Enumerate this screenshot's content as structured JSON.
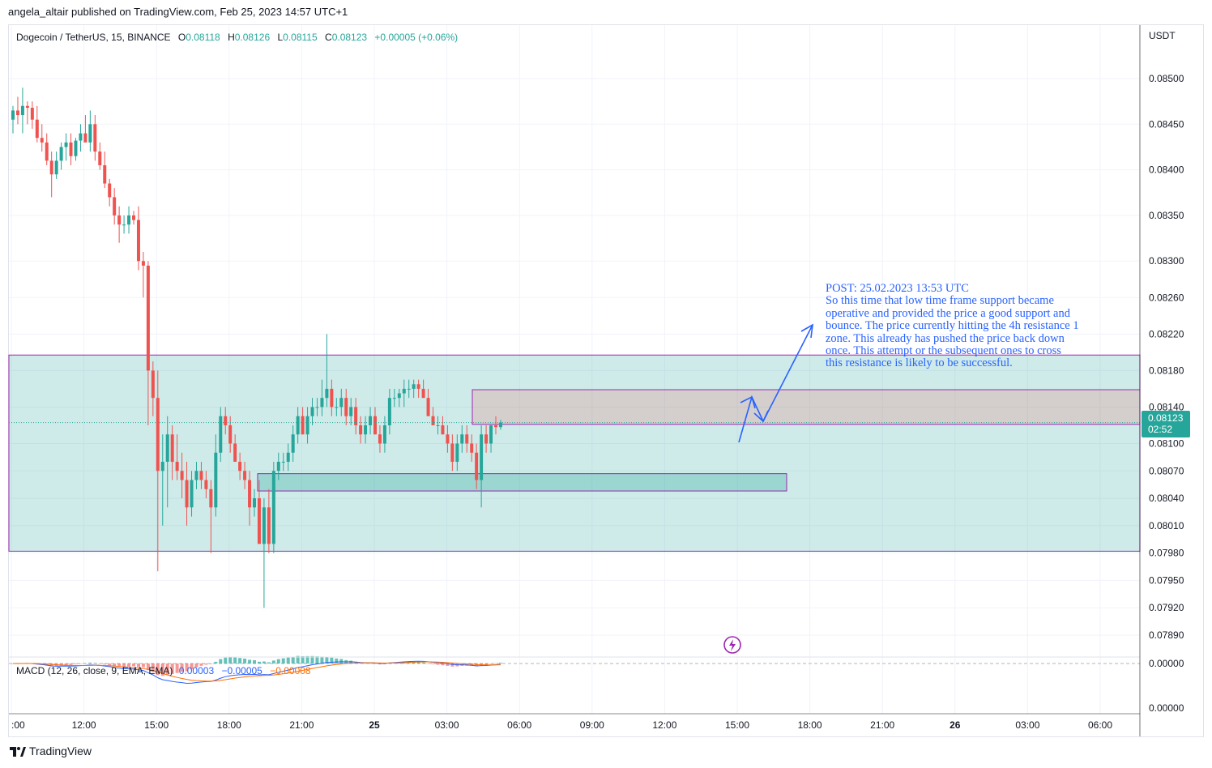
{
  "publish_text": "angela_altair published on TradingView.com, Feb 25, 2023 14:57 UTC+1",
  "legend": {
    "symbol": "Dogecoin / TetherUS, 15, BINANCE",
    "open_label": "O",
    "open": "0.08118",
    "high_label": "H",
    "high": "0.08126",
    "low_label": "L",
    "low": "0.08115",
    "close_label": "C",
    "close": "0.08123",
    "change": "+0.00005 (+0.06%)"
  },
  "currency": "USDT",
  "price_axis": [
    "0.08500",
    "0.08450",
    "0.08400",
    "0.08350",
    "0.08300",
    "0.08260",
    "0.08220",
    "0.08180",
    "0.08140",
    "0.08100",
    "0.08070",
    "0.08040",
    "0.08010",
    "0.07980",
    "0.07950",
    "0.07920",
    "0.07890"
  ],
  "macd_axis": [
    "0.00000",
    "0.00000"
  ],
  "time_axis": [
    ":00",
    "12:00",
    "15:00",
    "18:00",
    "21:00",
    "25",
    "03:00",
    "06:00",
    "09:00",
    "12:00",
    "15:00",
    "18:00",
    "21:00",
    "26",
    "03:00",
    "06:00"
  ],
  "price_tag": {
    "price": "0.08123",
    "countdown": "02:52"
  },
  "annotation": [
    "POST: 25.02.2023 13:53 UTC",
    "So this time that low time frame support became",
    "operative and provided the price a good support and",
    "bounce. The price currently hitting the 4h resistance 1",
    "zone. This already has pushed the price back down",
    "once. This attempt or the subsequent ones to cross",
    "this resistance is likely to be successful."
  ],
  "macd": {
    "label": "MACD (12, 26, close, 9, EMA, EMA)",
    "hist": "0.00003",
    "macd": "−0.00005",
    "signal": "−0.00008"
  },
  "footer": "TradingView",
  "colors": {
    "up": "#26a69a",
    "down": "#ef5350",
    "annotation": "#2962ff",
    "zone_green": "#b2dfdb",
    "zone_red": "#e0b4b4",
    "zone_border": "#9c27b0"
  },
  "chart_data": {
    "type": "candlestick",
    "symbol": "Dogecoin / TetherUS",
    "interval": "15",
    "exchange": "BINANCE",
    "ylim": [
      0.0787,
      0.0855
    ],
    "zones": [
      {
        "from": 0.07982,
        "to": 0.08197
      },
      {
        "from": 0.08121,
        "to": 0.08159
      },
      {
        "from": 0.08048,
        "to": 0.08067
      }
    ],
    "current_price": 0.08123,
    "candles": [
      [
        0.08455,
        0.0847,
        0.0844,
        0.08465
      ],
      [
        0.08465,
        0.0848,
        0.0845,
        0.0846
      ],
      [
        0.0846,
        0.0849,
        0.0844,
        0.0847
      ],
      [
        0.0847,
        0.08475,
        0.0845,
        0.08468
      ],
      [
        0.08468,
        0.08475,
        0.08445,
        0.08455
      ],
      [
        0.08455,
        0.0847,
        0.0843,
        0.08435
      ],
      [
        0.08435,
        0.0845,
        0.0842,
        0.0843
      ],
      [
        0.0843,
        0.0844,
        0.08405,
        0.0841
      ],
      [
        0.0841,
        0.0842,
        0.0837,
        0.08395
      ],
      [
        0.08395,
        0.0842,
        0.0839,
        0.0841
      ],
      [
        0.0841,
        0.0843,
        0.084,
        0.08425
      ],
      [
        0.08425,
        0.0844,
        0.0841,
        0.0843
      ],
      [
        0.0843,
        0.0844,
        0.08405,
        0.08415
      ],
      [
        0.08415,
        0.08435,
        0.0841,
        0.08432
      ],
      [
        0.08432,
        0.0845,
        0.0842,
        0.0844
      ],
      [
        0.0844,
        0.0846,
        0.0843,
        0.0843
      ],
      [
        0.0843,
        0.08465,
        0.0842,
        0.0845
      ],
      [
        0.0845,
        0.0846,
        0.0841,
        0.0842
      ],
      [
        0.0842,
        0.0843,
        0.084,
        0.08405
      ],
      [
        0.08405,
        0.0842,
        0.0838,
        0.08385
      ],
      [
        0.08385,
        0.0839,
        0.0836,
        0.0837
      ],
      [
        0.0837,
        0.0838,
        0.0834,
        0.0835
      ],
      [
        0.0835,
        0.0836,
        0.0832,
        0.0834
      ],
      [
        0.0834,
        0.0835,
        0.0833,
        0.0834
      ],
      [
        0.0834,
        0.0836,
        0.0833,
        0.0835
      ],
      [
        0.0835,
        0.08355,
        0.0834,
        0.08345
      ],
      [
        0.08345,
        0.0836,
        0.0829,
        0.083
      ],
      [
        0.083,
        0.0831,
        0.0826,
        0.08295
      ],
      [
        0.08295,
        0.083,
        0.0812,
        0.0818
      ],
      [
        0.0818,
        0.0819,
        0.0813,
        0.0815
      ],
      [
        0.0815,
        0.0818,
        0.0796,
        0.0807
      ],
      [
        0.0807,
        0.0811,
        0.0801,
        0.0808
      ],
      [
        0.0808,
        0.0813,
        0.0803,
        0.0811
      ],
      [
        0.0811,
        0.0812,
        0.0806,
        0.0808
      ],
      [
        0.0808,
        0.0811,
        0.0806,
        0.0807
      ],
      [
        0.0807,
        0.0809,
        0.0804,
        0.0806
      ],
      [
        0.0806,
        0.0808,
        0.0801,
        0.0803
      ],
      [
        0.0803,
        0.0807,
        0.0802,
        0.0806
      ],
      [
        0.0806,
        0.0808,
        0.0805,
        0.0807
      ],
      [
        0.0807,
        0.0808,
        0.0805,
        0.0806
      ],
      [
        0.0806,
        0.0807,
        0.0804,
        0.0805
      ],
      [
        0.0805,
        0.0806,
        0.0798,
        0.0803
      ],
      [
        0.0803,
        0.0811,
        0.0802,
        0.0809
      ],
      [
        0.0809,
        0.0814,
        0.0808,
        0.0813
      ],
      [
        0.0813,
        0.0814,
        0.0811,
        0.0812
      ],
      [
        0.0812,
        0.0813,
        0.0809,
        0.081
      ],
      [
        0.081,
        0.0811,
        0.0808,
        0.0808
      ],
      [
        0.0808,
        0.0809,
        0.0806,
        0.0807
      ],
      [
        0.0807,
        0.0808,
        0.0805,
        0.0806
      ],
      [
        0.0806,
        0.0807,
        0.0801,
        0.0803
      ],
      [
        0.0803,
        0.0805,
        0.0802,
        0.0804
      ],
      [
        0.0804,
        0.0806,
        0.0799,
        0.0799
      ],
      [
        0.0799,
        0.0804,
        0.0792,
        0.0803
      ],
      [
        0.0803,
        0.0805,
        0.0798,
        0.0799
      ],
      [
        0.0799,
        0.0808,
        0.0798,
        0.0807
      ],
      [
        0.0807,
        0.0809,
        0.0806,
        0.0808
      ],
      [
        0.0808,
        0.0809,
        0.0807,
        0.0808
      ],
      [
        0.0808,
        0.081,
        0.0807,
        0.0809
      ],
      [
        0.0809,
        0.0812,
        0.0808,
        0.0811
      ],
      [
        0.0811,
        0.0814,
        0.081,
        0.0813
      ],
      [
        0.0813,
        0.0814,
        0.0811,
        0.0811
      ],
      [
        0.0811,
        0.0814,
        0.081,
        0.0813
      ],
      [
        0.0813,
        0.0815,
        0.0812,
        0.0814
      ],
      [
        0.0814,
        0.0815,
        0.0813,
        0.0814
      ],
      [
        0.0814,
        0.0817,
        0.0813,
        0.0815
      ],
      [
        0.0815,
        0.0822,
        0.0814,
        0.0816
      ],
      [
        0.0816,
        0.0817,
        0.0813,
        0.0814
      ],
      [
        0.0814,
        0.0815,
        0.0813,
        0.0814
      ],
      [
        0.0814,
        0.0816,
        0.0813,
        0.0815
      ],
      [
        0.0815,
        0.0816,
        0.0812,
        0.0813
      ],
      [
        0.0813,
        0.0815,
        0.0812,
        0.0814
      ],
      [
        0.0814,
        0.0815,
        0.0811,
        0.0812
      ],
      [
        0.0812,
        0.0813,
        0.081,
        0.0811
      ],
      [
        0.0811,
        0.0813,
        0.081,
        0.0812
      ],
      [
        0.0812,
        0.0814,
        0.0811,
        0.0813
      ],
      [
        0.0813,
        0.0814,
        0.0811,
        0.0811
      ],
      [
        0.0811,
        0.0812,
        0.0809,
        0.081
      ],
      [
        0.081,
        0.0813,
        0.0809,
        0.0812
      ],
      [
        0.0812,
        0.0816,
        0.0811,
        0.0815
      ],
      [
        0.0815,
        0.0816,
        0.0814,
        0.0815
      ],
      [
        0.0815,
        0.0816,
        0.0814,
        0.08155
      ],
      [
        0.08155,
        0.0817,
        0.0814,
        0.0816
      ],
      [
        0.0816,
        0.0817,
        0.0815,
        0.0816
      ],
      [
        0.0816,
        0.0817,
        0.0815,
        0.08165
      ],
      [
        0.08165,
        0.0817,
        0.0815,
        0.0816
      ],
      [
        0.0816,
        0.0817,
        0.0815,
        0.0815
      ],
      [
        0.0815,
        0.0816,
        0.0813,
        0.0813
      ],
      [
        0.0813,
        0.0814,
        0.0812,
        0.0812
      ],
      [
        0.0812,
        0.0813,
        0.0811,
        0.0812
      ],
      [
        0.0812,
        0.0813,
        0.0811,
        0.0811
      ],
      [
        0.0811,
        0.0812,
        0.0809,
        0.081
      ],
      [
        0.081,
        0.0811,
        0.0807,
        0.0808
      ],
      [
        0.0808,
        0.0811,
        0.0807,
        0.081
      ],
      [
        0.081,
        0.0812,
        0.0809,
        0.0811
      ],
      [
        0.0811,
        0.0812,
        0.0809,
        0.081
      ],
      [
        0.081,
        0.0811,
        0.0808,
        0.0809
      ],
      [
        0.0809,
        0.081,
        0.0805,
        0.0806
      ],
      [
        0.0806,
        0.0812,
        0.0803,
        0.0811
      ],
      [
        0.0811,
        0.0812,
        0.0809,
        0.081
      ],
      [
        0.081,
        0.0812,
        0.0809,
        0.0812
      ],
      [
        0.0812,
        0.0813,
        0.0811,
        0.08118
      ],
      [
        0.08118,
        0.08126,
        0.08115,
        0.08123
      ]
    ],
    "macd_series": [
      "MACD",
      "Signal",
      "Histogram"
    ]
  }
}
